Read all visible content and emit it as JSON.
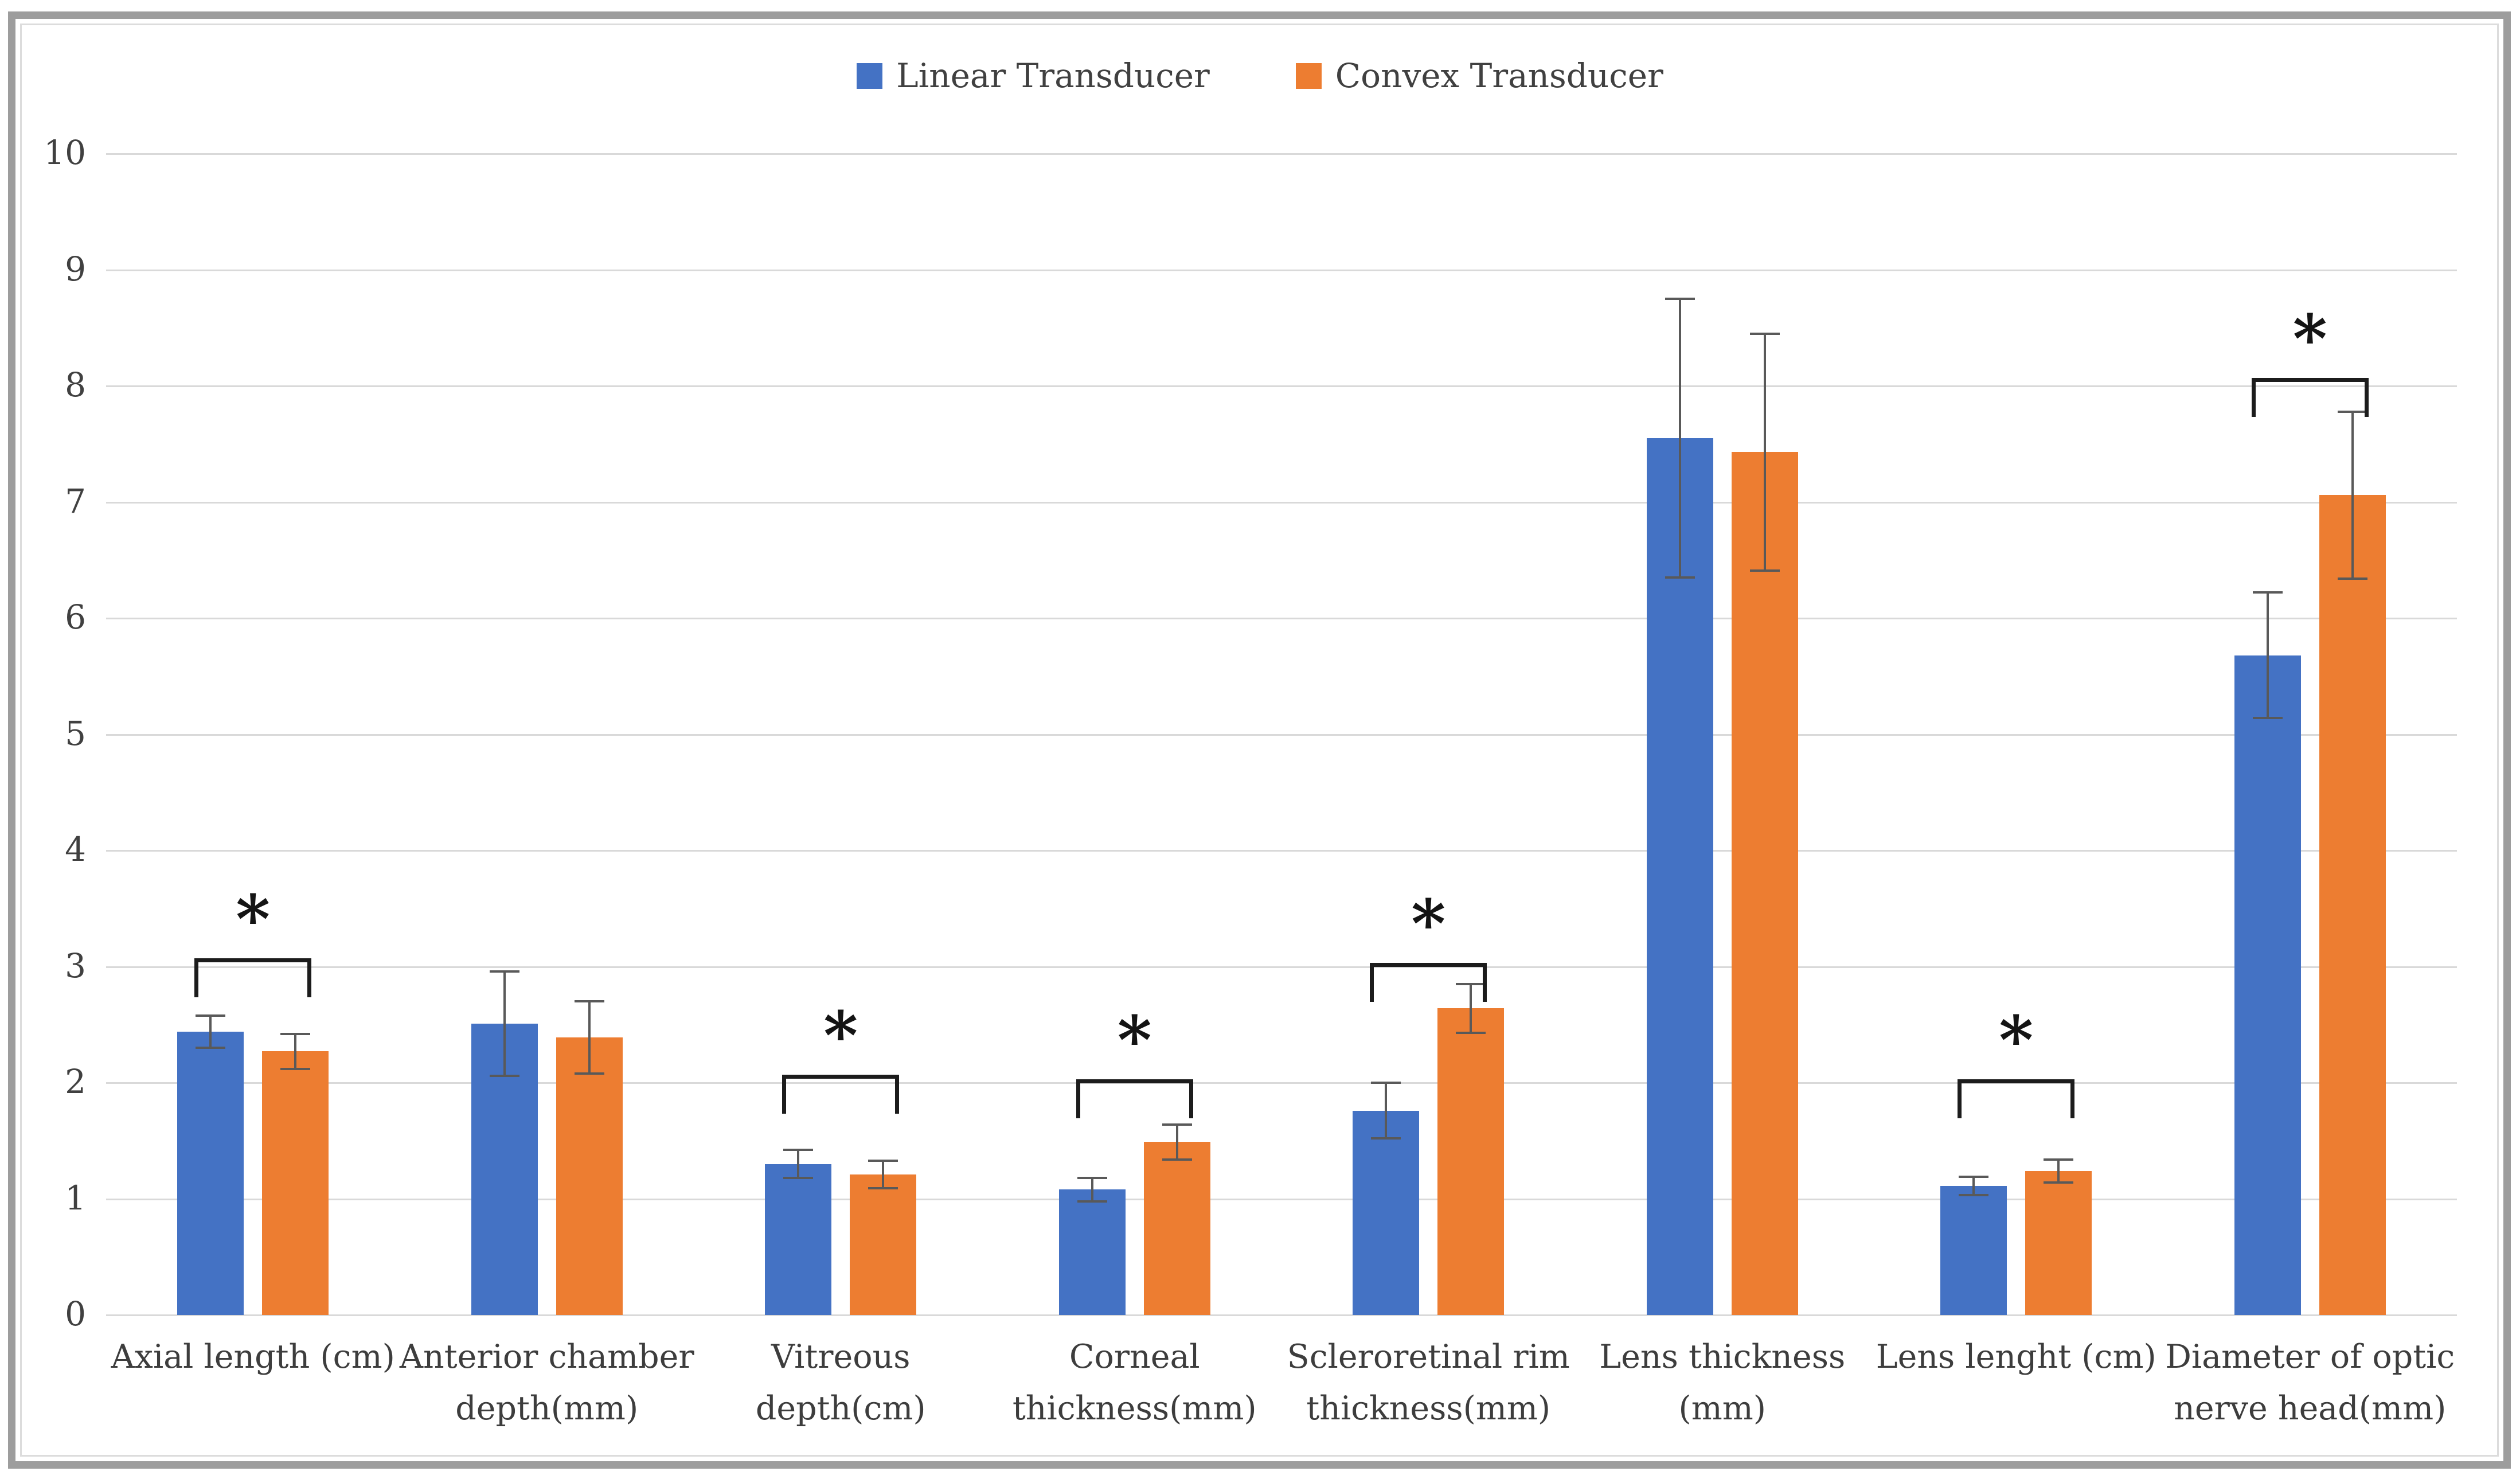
{
  "figure": {
    "kind": "grouped bar chart with error bars and significance brackets",
    "background": "#FFFFFF"
  },
  "legend": {
    "position": "top-center",
    "items": [
      {
        "label": "Linear Transducer",
        "color": "#4472C4"
      },
      {
        "label": "Convex Transducer",
        "color": "#ED7D31"
      }
    ]
  },
  "y_axis": {
    "min": 0,
    "max": 10,
    "step": 1,
    "tick_labels": [
      "0",
      "1",
      "2",
      "3",
      "4",
      "5",
      "6",
      "7",
      "8",
      "9",
      "10"
    ]
  },
  "x_axis": {
    "label_lines": [
      [
        "Axial length (cm)"
      ],
      [
        "Anterior chamber",
        "depth(mm)"
      ],
      [
        "Vitreous",
        "depth(cm)"
      ],
      [
        "Corneal",
        "thickness(mm)"
      ],
      [
        "Scleroretinal rim",
        "thickness(mm)"
      ],
      [
        "Lens thickness",
        "(mm)"
      ],
      [
        "Lens lenght (cm)"
      ],
      [
        "Diameter of optic",
        "nerve head(mm)"
      ]
    ]
  },
  "chart_data": {
    "type": "bar",
    "title": "",
    "xlabel": "",
    "ylabel": "",
    "ylim": [
      0,
      10
    ],
    "grid": "horizontal",
    "legend_position": "top",
    "categories": [
      "Axial length (cm)",
      "Anterior chamber depth(mm)",
      "Vitreous depth(cm)",
      "Corneal thickness(mm)",
      "Scleroretinal rim thickness(mm)",
      "Lens thickness (mm)",
      "Lens lenght (cm)",
      "Diameter of optic nerve head(mm)"
    ],
    "series": [
      {
        "name": "Linear Transducer",
        "color": "#4472C4",
        "values": [
          2.44,
          2.51,
          1.3,
          1.08,
          1.76,
          7.55,
          1.11,
          5.68
        ],
        "error_bars": [
          0.14,
          0.45,
          0.12,
          0.1,
          0.24,
          1.2,
          0.08,
          0.54
        ]
      },
      {
        "name": "Convex Transducer",
        "color": "#ED7D31",
        "values": [
          2.27,
          2.39,
          1.21,
          1.49,
          2.64,
          7.43,
          1.24,
          7.06
        ],
        "error_bars": [
          0.15,
          0.31,
          0.12,
          0.15,
          0.21,
          1.02,
          0.1,
          0.72
        ]
      }
    ],
    "significance_markers": [
      {
        "category_index": 0,
        "symbol": "*",
        "bracket_top_value": 3.07
      },
      {
        "category_index": 2,
        "symbol": "*",
        "bracket_top_value": 2.07
      },
      {
        "category_index": 3,
        "symbol": "*",
        "bracket_top_value": 2.03
      },
      {
        "category_index": 4,
        "symbol": "*",
        "bracket_top_value": 3.03
      },
      {
        "category_index": 6,
        "symbol": "*",
        "bracket_top_value": 2.03
      },
      {
        "category_index": 7,
        "symbol": "*",
        "bracket_top_value": 8.07
      }
    ]
  },
  "colors": {
    "bar_blue": "#4472C4",
    "bar_orange": "#ED7D31",
    "gridline": "#D9D9D9",
    "axis_text": "#404040",
    "category_text": "#3D3D3D",
    "error_bar": "#595959",
    "bracket": "#1C1C1C",
    "frame_outer": "#9D9D9D",
    "frame_inner": "#DCDCDC",
    "background": "#FFFFFF"
  }
}
